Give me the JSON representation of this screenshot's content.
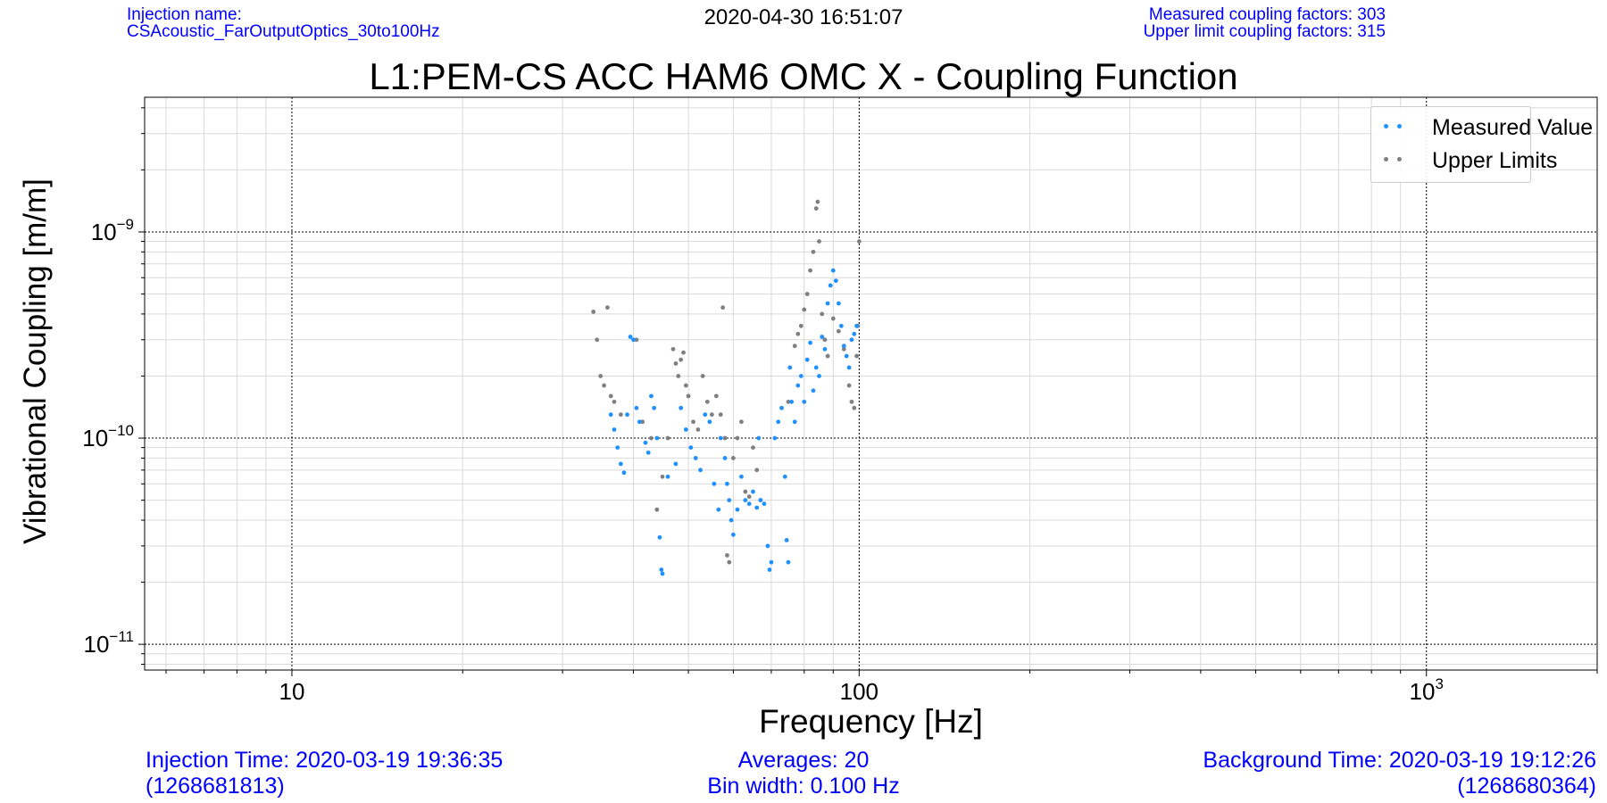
{
  "header": {
    "injection_label": "Injection name:",
    "injection_name": "CSAcoustic_FarOutputOptics_30to100Hz",
    "timestamp": "2020-04-30 16:51:07",
    "measured_count": "Measured coupling factors: 303",
    "upper_count": "Upper limit coupling factors: 315"
  },
  "footer": {
    "injection_time": "Injection Time: 2020-03-19 19:36:35",
    "injection_gps": "(1268681813)",
    "averages": "Averages: 20",
    "bin_width": "Bin width: 0.100 Hz",
    "background_time": "Background Time: 2020-03-19 19:12:26",
    "background_gps": "(1268680364)"
  },
  "colors": {
    "measured": "#1e90ff",
    "upper": "#7f7f7f",
    "info_text": "#0000ff"
  },
  "chart_data": {
    "type": "scatter",
    "title": "L1:PEM-CS ACC HAM6 OMC X - Coupling Function",
    "xlabel": "Frequency [Hz]",
    "ylabel": "Vibrational Coupling [m/m]",
    "xscale": "log",
    "yscale": "log",
    "xlim": [
      5.5,
      2000
    ],
    "ylim": [
      7.5e-12,
      4.5e-09
    ],
    "x_ticks": [
      {
        "value": 10,
        "mantissa": "10",
        "exp": ""
      },
      {
        "value": 100,
        "mantissa": "100",
        "exp": ""
      },
      {
        "value": 1000,
        "mantissa": "10",
        "exp": "3"
      }
    ],
    "y_ticks": [
      {
        "value": 1e-09,
        "mantissa": "10",
        "exp": "−9"
      },
      {
        "value": 1e-10,
        "mantissa": "10",
        "exp": "−10"
      },
      {
        "value": 1e-11,
        "mantissa": "10",
        "exp": "−11"
      }
    ],
    "grid": true,
    "legend_position": "top-right",
    "series": [
      {
        "name": "Measured Value",
        "color": "#1e90ff",
        "points": [
          [
            36.5,
            1.3e-10
          ],
          [
            37.0,
            1.1e-10
          ],
          [
            37.5,
            9e-11
          ],
          [
            38.0,
            7.5e-11
          ],
          [
            38.5,
            6.8e-11
          ],
          [
            39.0,
            1.3e-10
          ],
          [
            39.5,
            3.1e-10
          ],
          [
            40.0,
            3e-10
          ],
          [
            40.5,
            1.4e-10
          ],
          [
            41.0,
            1.2e-10
          ],
          [
            42.0,
            9.5e-11
          ],
          [
            42.5,
            8.5e-11
          ],
          [
            43.0,
            1.6e-10
          ],
          [
            43.5,
            1.4e-10
          ],
          [
            44.0,
            1e-10
          ],
          [
            44.5,
            3.3e-11
          ],
          [
            44.8,
            2.3e-11
          ],
          [
            45.0,
            2.2e-11
          ],
          [
            46.0,
            6.5e-11
          ],
          [
            47.5,
            7.5e-11
          ],
          [
            48.5,
            1.4e-10
          ],
          [
            49.5,
            1.1e-10
          ],
          [
            50.5,
            9e-11
          ],
          [
            51.5,
            8e-11
          ],
          [
            52.5,
            7e-11
          ],
          [
            53.5,
            1.3e-10
          ],
          [
            54.5,
            1.2e-10
          ],
          [
            55.5,
            6e-11
          ],
          [
            56.5,
            4.5e-11
          ],
          [
            57.0,
            1e-10
          ],
          [
            58.0,
            8e-11
          ],
          [
            58.5,
            6e-11
          ],
          [
            59.0,
            5e-11
          ],
          [
            59.5,
            4e-11
          ],
          [
            60.0,
            3.4e-11
          ],
          [
            61.0,
            4.5e-11
          ],
          [
            62.0,
            6.5e-11
          ],
          [
            63.0,
            5e-11
          ],
          [
            64.0,
            4.8e-11
          ],
          [
            65.0,
            5.5e-11
          ],
          [
            66.0,
            4.6e-11
          ],
          [
            66.5,
            1e-10
          ],
          [
            67.0,
            5e-11
          ],
          [
            68.0,
            4.8e-11
          ],
          [
            69.0,
            3e-11
          ],
          [
            69.5,
            2.3e-11
          ],
          [
            70.0,
            2.5e-11
          ],
          [
            71.0,
            1e-10
          ],
          [
            72.0,
            1.2e-10
          ],
          [
            73.0,
            1.4e-10
          ],
          [
            74.0,
            6.5e-11
          ],
          [
            74.5,
            3.2e-11
          ],
          [
            75.0,
            2.5e-11
          ],
          [
            75.5,
            2.2e-10
          ],
          [
            76.0,
            1.5e-10
          ],
          [
            77.0,
            1.2e-10
          ],
          [
            78.0,
            1.8e-10
          ],
          [
            79.0,
            2e-10
          ],
          [
            80.0,
            1.5e-10
          ],
          [
            81.0,
            2.4e-10
          ],
          [
            82.0,
            2.9e-10
          ],
          [
            83.0,
            1.7e-10
          ],
          [
            84.0,
            2.2e-10
          ],
          [
            85.0,
            2e-10
          ],
          [
            86.0,
            3.1e-10
          ],
          [
            87.0,
            2.7e-10
          ],
          [
            88.0,
            4.5e-10
          ],
          [
            89.0,
            5.5e-10
          ],
          [
            90.0,
            6.5e-10
          ],
          [
            91.0,
            5.8e-10
          ],
          [
            92.0,
            4.5e-10
          ],
          [
            93.0,
            3.5e-10
          ],
          [
            94.0,
            2.8e-10
          ],
          [
            95.0,
            2.5e-10
          ],
          [
            96.0,
            2.2e-10
          ],
          [
            97.0,
            3e-10
          ],
          [
            98.0,
            3.2e-10
          ],
          [
            99.0,
            3.5e-10
          ]
        ]
      },
      {
        "name": "Upper Limits",
        "color": "#7f7f7f",
        "points": [
          [
            34.0,
            4.1e-10
          ],
          [
            34.5,
            3e-10
          ],
          [
            35.0,
            2e-10
          ],
          [
            35.5,
            1.8e-10
          ],
          [
            36.0,
            4.3e-10
          ],
          [
            36.5,
            1.6e-10
          ],
          [
            37.0,
            1.5e-10
          ],
          [
            38.0,
            1.3e-10
          ],
          [
            40.5,
            3e-10
          ],
          [
            41.5,
            1.2e-10
          ],
          [
            43.0,
            1e-10
          ],
          [
            44.0,
            4.5e-11
          ],
          [
            45.0,
            6.5e-11
          ],
          [
            46.0,
            1e-10
          ],
          [
            47.0,
            2.7e-10
          ],
          [
            47.5,
            2.3e-10
          ],
          [
            48.0,
            2e-10
          ],
          [
            48.5,
            2.4e-10
          ],
          [
            49.0,
            2.6e-10
          ],
          [
            49.5,
            1.8e-10
          ],
          [
            50.0,
            1.6e-10
          ],
          [
            51.0,
            1.2e-10
          ],
          [
            52.0,
            1.1e-10
          ],
          [
            53.0,
            2e-10
          ],
          [
            54.0,
            1.5e-10
          ],
          [
            55.0,
            1.3e-10
          ],
          [
            56.0,
            1.6e-10
          ],
          [
            57.0,
            1.3e-10
          ],
          [
            57.5,
            4.3e-10
          ],
          [
            58.0,
            1e-10
          ],
          [
            58.5,
            2.7e-11
          ],
          [
            59.0,
            2.5e-11
          ],
          [
            60.0,
            8e-11
          ],
          [
            61.0,
            1e-10
          ],
          [
            62.0,
            1.2e-10
          ],
          [
            63.0,
            5.5e-11
          ],
          [
            64.0,
            5.2e-11
          ],
          [
            65.0,
            9e-11
          ],
          [
            66.0,
            7e-11
          ],
          [
            67.0,
            5e-11
          ],
          [
            75.0,
            1.5e-10
          ],
          [
            77.0,
            2.8e-10
          ],
          [
            78.0,
            3.2e-10
          ],
          [
            79.0,
            3.5e-10
          ],
          [
            80.0,
            4.2e-10
          ],
          [
            81.0,
            5e-10
          ],
          [
            82.0,
            6.5e-10
          ],
          [
            83.0,
            8e-10
          ],
          [
            84.0,
            1.3e-09
          ],
          [
            84.5,
            1.4e-09
          ],
          [
            85.0,
            9e-10
          ],
          [
            86.0,
            4e-10
          ],
          [
            87.0,
            3e-10
          ],
          [
            88.0,
            2.5e-10
          ],
          [
            90.0,
            3.8e-10
          ],
          [
            92.0,
            3.3e-10
          ],
          [
            94.0,
            2.7e-10
          ],
          [
            96.0,
            1.8e-10
          ],
          [
            97.0,
            1.5e-10
          ],
          [
            98.0,
            1.4e-10
          ],
          [
            99.0,
            2.5e-10
          ],
          [
            99.5,
            3.5e-10
          ],
          [
            100.0,
            9e-10
          ]
        ]
      }
    ]
  }
}
